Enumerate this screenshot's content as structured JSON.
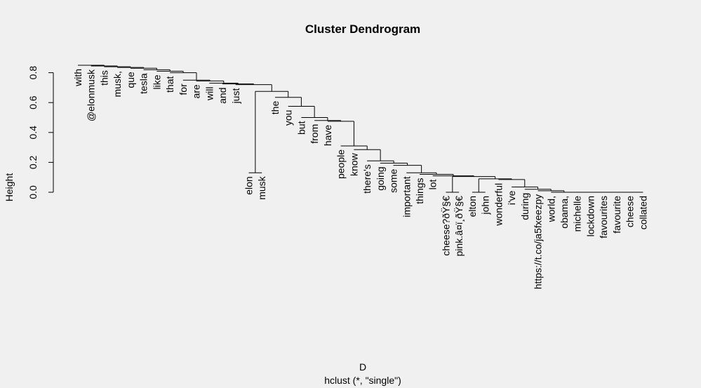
{
  "chart_data": {
    "type": "dendrogram",
    "title": "Cluster Dendrogram",
    "xlabel": "D",
    "sublabel": "hclust (*, \"single\")",
    "ylabel": "Height",
    "ylim": [
      0,
      0.85
    ],
    "yticks": [
      0.0,
      0.2,
      0.4,
      0.6,
      0.8
    ],
    "ytick_labels": [
      "0.0",
      "0.2",
      "0.4",
      "0.6",
      "0.8"
    ],
    "leaves": [
      {
        "label": "with",
        "height": 0.85
      },
      {
        "label": "@elonmusk",
        "height": 0.845
      },
      {
        "label": "this",
        "height": 0.84
      },
      {
        "label": "musk,",
        "height": 0.835
      },
      {
        "label": "que",
        "height": 0.83
      },
      {
        "label": "tesla",
        "height": 0.82
      },
      {
        "label": "like",
        "height": 0.81
      },
      {
        "label": "that",
        "height": 0.8
      },
      {
        "label": "for",
        "height": 0.75
      },
      {
        "label": "are",
        "height": 0.745
      },
      {
        "label": "will",
        "height": 0.73
      },
      {
        "label": "and",
        "height": 0.725
      },
      {
        "label": "just",
        "height": 0.72
      },
      {
        "label": "elon",
        "height": 0.13
      },
      {
        "label": "musk",
        "height": 0.13
      },
      {
        "label": "the",
        "height": 0.635
      },
      {
        "label": "you",
        "height": 0.575
      },
      {
        "label": "but",
        "height": 0.5
      },
      {
        "label": "from",
        "height": 0.48
      },
      {
        "label": "have",
        "height": 0.475
      },
      {
        "label": "people",
        "height": 0.31
      },
      {
        "label": "know",
        "height": 0.285
      },
      {
        "label": "there's",
        "height": 0.21
      },
      {
        "label": "going",
        "height": 0.195
      },
      {
        "label": "some",
        "height": 0.18
      },
      {
        "label": "important",
        "height": 0.13
      },
      {
        "label": "things",
        "height": 0.12
      },
      {
        "label": "lot",
        "height": 0.11
      },
      {
        "label": "cheese?ðŸ§€",
        "height": 0.0
      },
      {
        "label": "pink.â¤ï¸ðŸ§€",
        "height": 0.0
      },
      {
        "label": "elton",
        "height": 0.0
      },
      {
        "label": "john",
        "height": 0.0
      },
      {
        "label": "wonderful",
        "height": 0.085
      },
      {
        "label": "i've",
        "height": 0.035
      },
      {
        "label": "during",
        "height": 0.02
      },
      {
        "label": "https://t.co/ja5fxeezpy",
        "height": 0.01
      },
      {
        "label": "world,",
        "height": 0.0
      },
      {
        "label": "obama,",
        "height": 0.0
      },
      {
        "label": "michelle",
        "height": 0.0
      },
      {
        "label": "lockdown",
        "height": 0.0
      },
      {
        "label": "favourites",
        "height": 0.0
      },
      {
        "label": "favourite",
        "height": 0.0
      },
      {
        "label": "cheese",
        "height": 0.0
      },
      {
        "label": "collated",
        "height": 0.0
      }
    ],
    "merges": [
      [
        -14,
        -15,
        0.13
      ],
      [
        -29,
        -30,
        0.0
      ],
      [
        -31,
        -32,
        0.0
      ],
      [
        -43,
        -44,
        0.0
      ],
      [
        -42,
        4,
        0.0
      ],
      [
        -41,
        5,
        0.0
      ],
      [
        -40,
        6,
        0.0
      ],
      [
        -39,
        7,
        0.0
      ],
      [
        -38,
        8,
        0.0
      ],
      [
        -37,
        9,
        0.0
      ],
      [
        -36,
        10,
        0.01
      ],
      [
        -35,
        11,
        0.02
      ],
      [
        -34,
        12,
        0.035
      ],
      [
        -33,
        13,
        0.085
      ],
      [
        3,
        14,
        0.09
      ],
      [
        2,
        15,
        0.105
      ],
      [
        -28,
        16,
        0.11
      ],
      [
        -27,
        17,
        0.12
      ],
      [
        -26,
        18,
        0.13
      ],
      [
        -25,
        19,
        0.18
      ],
      [
        -24,
        20,
        0.195
      ],
      [
        -23,
        21,
        0.21
      ],
      [
        -22,
        22,
        0.285
      ],
      [
        -21,
        23,
        0.31
      ],
      [
        -20,
        24,
        0.475
      ],
      [
        -19,
        25,
        0.48
      ],
      [
        -18,
        26,
        0.5
      ],
      [
        -17,
        27,
        0.575
      ],
      [
        -16,
        28,
        0.635
      ],
      [
        1,
        29,
        0.675
      ],
      [
        -13,
        30,
        0.72
      ],
      [
        -12,
        31,
        0.725
      ],
      [
        -11,
        32,
        0.73
      ],
      [
        -10,
        33,
        0.745
      ],
      [
        -9,
        34,
        0.75
      ],
      [
        -8,
        35,
        0.8
      ],
      [
        -7,
        36,
        0.81
      ],
      [
        -6,
        37,
        0.82
      ],
      [
        -5,
        38,
        0.83
      ],
      [
        -4,
        39,
        0.835
      ],
      [
        -3,
        40,
        0.84
      ],
      [
        -2,
        41,
        0.845
      ],
      [
        -1,
        42,
        0.85
      ]
    ]
  }
}
